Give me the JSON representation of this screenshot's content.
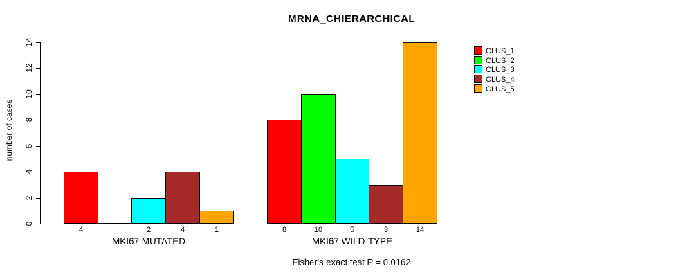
{
  "title": "MRNA_CHIERARCHICAL",
  "footer": "Fisher's exact test P = 0.0162",
  "chart_data": {
    "type": "bar",
    "title": "MRNA_CHIERARCHICAL",
    "xlabel": "",
    "ylabel": "number of cases",
    "ylim": [
      0,
      14
    ],
    "yticks": [
      0,
      2,
      4,
      6,
      8,
      10,
      12,
      14
    ],
    "grid": false,
    "legend_position": "right",
    "legend": [
      {
        "label": "CLUS_1",
        "color": "#FF0000"
      },
      {
        "label": "CLUS_2",
        "color": "#00FF00"
      },
      {
        "label": "CLUS_3",
        "color": "#00FFFF"
      },
      {
        "label": "CLUS_4",
        "color": "#A52A2A"
      },
      {
        "label": "CLUS_5",
        "color": "#FFA500"
      }
    ],
    "groups": [
      {
        "label": "MKI67 MUTATED",
        "bars": [
          {
            "cluster": "CLUS_1",
            "value": 4,
            "bar_label": "4"
          },
          {
            "cluster": "CLUS_2",
            "value": 0,
            "bar_label": ""
          },
          {
            "cluster": "CLUS_3",
            "value": 2,
            "bar_label": "2"
          },
          {
            "cluster": "CLUS_4",
            "value": 4,
            "bar_label": "4"
          },
          {
            "cluster": "CLUS_5",
            "value": 1,
            "bar_label": "1"
          }
        ]
      },
      {
        "label": "MKI67 WILD-TYPE",
        "bars": [
          {
            "cluster": "CLUS_1",
            "value": 8,
            "bar_label": "8"
          },
          {
            "cluster": "CLUS_2",
            "value": 10,
            "bar_label": "10"
          },
          {
            "cluster": "CLUS_3",
            "value": 5,
            "bar_label": "5"
          },
          {
            "cluster": "CLUS_4",
            "value": 3,
            "bar_label": "3"
          },
          {
            "cluster": "CLUS_5",
            "value": 14,
            "bar_label": "14"
          }
        ]
      }
    ],
    "annotation": "Fisher's exact test P = 0.0162"
  }
}
